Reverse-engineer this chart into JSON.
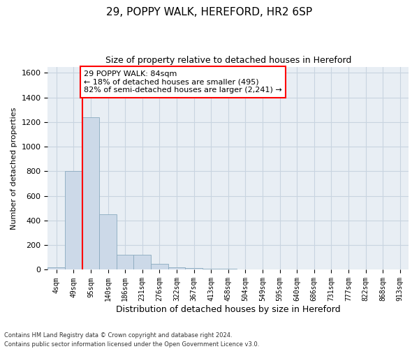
{
  "title_line1": "29, POPPY WALK, HEREFORD, HR2 6SP",
  "title_line2": "Size of property relative to detached houses in Hereford",
  "xlabel": "Distribution of detached houses by size in Hereford",
  "ylabel": "Number of detached properties",
  "footer_line1": "Contains HM Land Registry data © Crown copyright and database right 2024.",
  "footer_line2": "Contains public sector information licensed under the Open Government Licence v3.0.",
  "bin_labels": [
    "4sqm",
    "49sqm",
    "95sqm",
    "140sqm",
    "186sqm",
    "231sqm",
    "276sqm",
    "322sqm",
    "367sqm",
    "413sqm",
    "458sqm",
    "504sqm",
    "549sqm",
    "595sqm",
    "640sqm",
    "686sqm",
    "731sqm",
    "777sqm",
    "822sqm",
    "868sqm",
    "913sqm"
  ],
  "bar_values": [
    20,
    800,
    1240,
    450,
    120,
    120,
    50,
    20,
    15,
    10,
    10,
    5,
    2,
    2,
    2,
    1,
    1,
    1,
    0,
    0,
    0
  ],
  "bar_color": "#ccd9e8",
  "bar_edge_color": "#8aaabf",
  "property_line_color": "red",
  "property_line_x": 2.0,
  "annotation_text": "29 POPPY WALK: 84sqm\n← 18% of detached houses are smaller (495)\n82% of semi-detached houses are larger (2,241) →",
  "annotation_box_color": "white",
  "annotation_border_color": "red",
  "ylim": [
    0,
    1650
  ],
  "yticks": [
    0,
    200,
    400,
    600,
    800,
    1000,
    1200,
    1400,
    1600
  ],
  "grid_color": "#c8d4e0",
  "background_color": "#e8eef4",
  "plot_bg_color": "white"
}
